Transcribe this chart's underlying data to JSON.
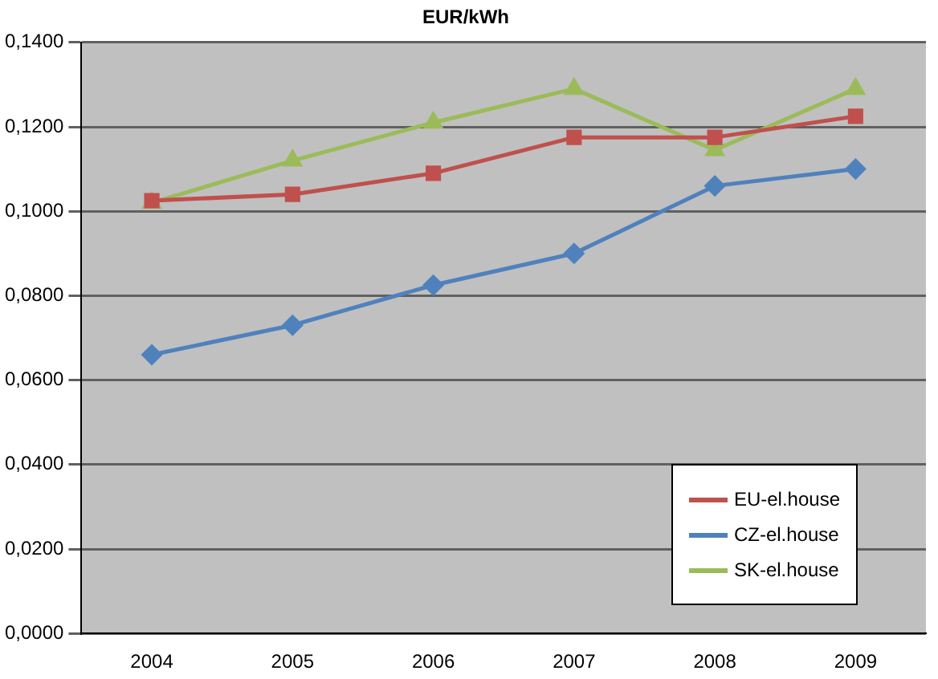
{
  "chart_data": {
    "type": "line",
    "title": "EUR/kWh",
    "categories": [
      "2004",
      "2005",
      "2006",
      "2007",
      "2008",
      "2009"
    ],
    "series": [
      {
        "name": "EU-el.house",
        "color": "#c0504d",
        "marker": "square",
        "values": [
          0.1025,
          0.104,
          0.109,
          0.1175,
          0.1175,
          0.1225
        ]
      },
      {
        "name": "CZ-el.house",
        "color": "#4f81bd",
        "marker": "diamond",
        "values": [
          0.066,
          0.073,
          0.0825,
          0.09,
          0.106,
          0.11
        ]
      },
      {
        "name": "SK-el.house",
        "color": "#9bbb59",
        "marker": "triangle",
        "values": [
          0.102,
          0.112,
          0.121,
          0.129,
          0.1145,
          0.129
        ]
      }
    ],
    "ylim": [
      0,
      0.14
    ],
    "yticks": [
      {
        "value": 0,
        "label": "0,0000"
      },
      {
        "value": 0.02,
        "label": "0,0200"
      },
      {
        "value": 0.04,
        "label": "0,0400"
      },
      {
        "value": 0.06,
        "label": "0,0600"
      },
      {
        "value": 0.08,
        "label": "0,0800"
      },
      {
        "value": 0.1,
        "label": "0,1000"
      },
      {
        "value": 0.12,
        "label": "0,1200"
      },
      {
        "value": 0.14,
        "label": "0,1400"
      }
    ],
    "grid": "y",
    "legend": "bottom right"
  }
}
